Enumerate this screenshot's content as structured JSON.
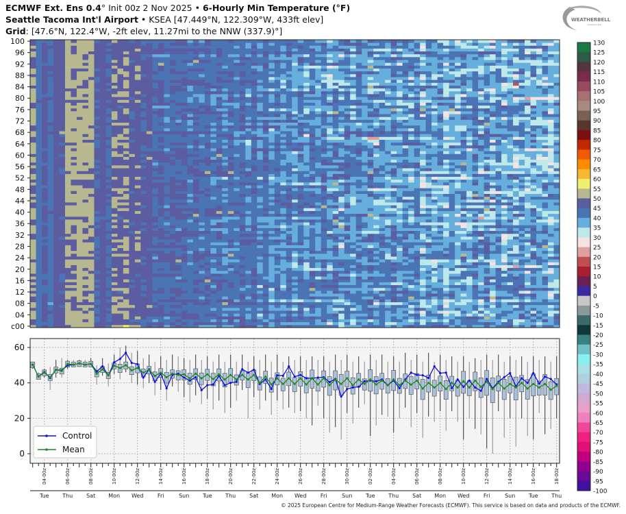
{
  "header": {
    "line1_bold_a": "ECMWF Ext.  Ens 0.4",
    "line1_deg": "°",
    "line1_text": " Init 00z 2 Nov 2025 • ",
    "line1_bold_b": "6-Hourly Min Temperature (°F)",
    "line2_bold": "Seattle Tacoma Int'l Airport",
    "line2_text": " • KSEA [47.449°N, 122.309°W, 433ft elev]",
    "line3_bold": "Grid",
    "line3_text": ": [47.6°N, 122.4°W, -2ft elev, 11.27mi to the NNW (337.9)°]"
  },
  "logo": {
    "text": "WEATHERBELL",
    "subtext": "Analytics LLC"
  },
  "copyright": "© 2025 European Centre for Medium-Range Weather Forecasts (ECMWF). This service is based on data and products of the ECMWF.",
  "chart_data": [
    {
      "type": "heatmap",
      "title": "",
      "ylabel": "",
      "y_tick_labels": [
        "c00",
        "04",
        "08",
        "12",
        "16",
        "20",
        "24",
        "28",
        "32",
        "36",
        "40",
        "44",
        "48",
        "52",
        "56",
        "60",
        "64",
        "68",
        "72",
        "76",
        "80",
        "84",
        "88",
        "92",
        "96",
        "100"
      ],
      "members": 101,
      "note_cells": "ensemble member (row) vs time (column), 12-hourly from 03 Nov 00z to 18 Dec 00z"
    },
    {
      "type": "line",
      "ylim": [
        -5,
        65
      ],
      "y_ticks": [
        0,
        20,
        40,
        60
      ],
      "grid": true,
      "legend_placement": "bottom-left",
      "x_start": "2025-11-03T00:00Z",
      "x_step_hours": 12,
      "x_tick_labels": [
        "04-00z",
        "06-00z",
        "08-00z",
        "10-00z",
        "12-00z",
        "14-00z",
        "16-00z",
        "18-00z",
        "20-00z",
        "22-00z",
        "24-00z",
        "26-00z",
        "28-00z",
        "30-00z",
        "02-00z",
        "04-00z",
        "06-00z",
        "08-00z",
        "10-00z",
        "12-00z",
        "14-00z",
        "16-00z",
        "18-00z"
      ],
      "x_day_labels": [
        "Tue",
        "Thu",
        "Sat",
        "Mon",
        "Wed",
        "Fri",
        "Sun",
        "Tue",
        "Thu",
        "Sat",
        "Mon",
        "Wed",
        "Fri",
        "Sun",
        "Tue",
        "Thu",
        "Sat",
        "Mon",
        "Wed",
        "Fri",
        "Sun",
        "Tue",
        "Thu"
      ],
      "series": [
        {
          "name": "Control",
          "color": "#1010dd",
          "values": [
            50.3,
            43.6,
            46.1,
            42.8,
            47.4,
            47.1,
            49.9,
            50.3,
            51,
            50.3,
            50.7,
            46.5,
            49.3,
            44.3,
            51.6,
            53.5,
            57,
            51.3,
            50.6,
            43,
            47.7,
            40.6,
            45.2,
            36.9,
            44.5,
            45.2,
            43,
            41.3,
            43.2,
            35.9,
            38.7,
            39.1,
            43.9,
            38.7,
            40,
            40.6,
            47.7,
            45.8,
            47.4,
            39.4,
            41.9,
            36.6,
            44.3,
            44,
            49.3,
            43.5,
            44.5,
            42.6,
            42.6,
            43,
            43.2,
            40.4,
            42.2,
            32.3,
            36.5,
            37.4,
            37.8,
            40.9,
            41.3,
            40.9,
            41.9,
            38.7,
            41.3,
            37,
            41.9,
            45.8,
            44.5,
            44.3,
            42.8,
            49.3,
            45.5,
            45.8,
            37,
            41.9,
            37.8,
            41.3,
            37.4,
            35.5,
            42.2,
            37,
            40.6,
            43.2,
            45.5,
            38.1,
            42.6,
            40,
            45.5,
            39.6,
            43.5,
            42.2,
            39.1
          ]
        },
        {
          "name": "Mean",
          "color": "#1a8a1a",
          "values": [
            50.3,
            43.6,
            45.8,
            43.2,
            47.4,
            46.8,
            50.7,
            50.3,
            51,
            50.3,
            50.7,
            45.2,
            47.7,
            44.3,
            49.7,
            48.4,
            50,
            47.1,
            48.4,
            45.8,
            47.4,
            43.9,
            45.8,
            43.2,
            45.2,
            44.5,
            44.8,
            42.6,
            45.2,
            42.6,
            44.8,
            42.2,
            44.8,
            41.9,
            44.5,
            41.9,
            44.5,
            41.9,
            44.5,
            40,
            43.5,
            39.1,
            42.6,
            39.4,
            42.6,
            39.4,
            42.6,
            39.1,
            42.6,
            39.1,
            42.6,
            38.7,
            41.9,
            39.4,
            42.6,
            38.7,
            41.9,
            39.4,
            41.9,
            39.1,
            41.3,
            38.7,
            41.9,
            38.7,
            41.3,
            39,
            41.3,
            36.8,
            40,
            37.4,
            40,
            36.5,
            40,
            37.4,
            40.9,
            37.4,
            41.3,
            37.8,
            40.6,
            36.5,
            40,
            36.8,
            39.4,
            37.4,
            40,
            36.8,
            39.4,
            37.4,
            39.4,
            36.1,
            38.3
          ]
        }
      ],
      "ensemble_max": [
        52,
        46,
        48,
        49,
        53,
        54,
        53,
        53,
        53,
        53,
        54,
        50,
        54,
        51,
        56,
        60,
        61,
        57,
        58,
        54,
        56,
        52,
        55,
        53,
        56,
        55,
        54,
        53,
        56,
        53,
        55,
        52,
        56,
        52,
        56,
        52,
        56,
        52,
        55,
        53,
        56,
        52,
        56,
        52,
        55,
        53,
        55,
        53,
        55,
        53,
        55,
        52,
        56,
        53,
        56,
        52,
        55,
        52,
        56,
        53,
        56,
        52,
        55,
        52,
        57,
        53,
        56,
        52,
        57,
        52,
        56,
        53,
        55,
        52,
        55,
        52,
        54,
        53,
        56,
        53,
        56,
        52,
        55,
        53,
        55,
        52,
        55,
        53,
        55,
        52,
        55
      ],
      "ensemble_min": [
        48,
        42,
        43,
        36,
        43,
        43,
        48,
        49,
        49,
        49,
        49,
        39,
        44,
        38,
        45,
        42,
        46,
        40,
        39,
        37,
        40,
        33,
        36,
        30,
        38,
        35,
        32,
        29,
        33,
        28,
        31,
        25,
        30,
        23,
        26,
        30,
        36,
        20,
        32,
        25,
        30,
        22,
        30,
        25,
        26,
        23,
        24,
        20,
        16,
        27,
        20,
        12,
        15,
        8,
        23,
        17,
        26,
        28,
        10,
        16,
        22,
        21,
        12,
        20,
        26,
        15,
        23,
        9,
        21,
        18,
        24,
        13,
        24,
        18,
        8,
        20,
        14,
        11,
        3,
        0,
        24,
        9,
        20,
        4,
        20,
        10,
        8,
        23,
        11,
        14,
        20
      ]
    }
  ],
  "colorbar": {
    "labels": [
      "130",
      "125",
      "120",
      "115",
      "110",
      "105",
      "100",
      "95",
      "90",
      "85",
      "80",
      "75",
      "70",
      "65",
      "60",
      "55",
      "50",
      "45",
      "40",
      "35",
      "30",
      "25",
      "20",
      "15",
      "10",
      "5",
      "0",
      "-5",
      "-10",
      "-15",
      "-20",
      "-25",
      "-30",
      "-35",
      "-40",
      "-45",
      "-50",
      "-55",
      "-60",
      "-65",
      "-70",
      "-75",
      "-80",
      "-85",
      "-90",
      "-95",
      "-100"
    ],
    "colors": [
      "#1a7a45",
      "#2f5a48",
      "#553540",
      "#7a2c50",
      "#9a4a5e",
      "#a87070",
      "#a88a80",
      "#7a6055",
      "#5a3530",
      "#7a1010",
      "#c02800",
      "#f05a00",
      "#ff8c00",
      "#f5b830",
      "#f0ee70",
      "#b8b890",
      "#5c5ca0",
      "#4a74b4",
      "#66aedc",
      "#bfe8ea",
      "#f6e2e2",
      "#e0a0a0",
      "#c05050",
      "#a82030",
      "#6a2050",
      "#3a2aa0",
      "#c8c8c8",
      "#8a9a9a",
      "#3a6a6a",
      "#103838",
      "#3a8080",
      "#70c0c8",
      "#88f0f0",
      "#a8e0e8",
      "#b0d0e0",
      "#c0b8e0",
      "#d0a8d0",
      "#e8a0c8",
      "#f080c0",
      "#f04898",
      "#f02080",
      "#e01078",
      "#c00080",
      "#900090",
      "#6a0898",
      "#4010a0"
    ]
  }
}
